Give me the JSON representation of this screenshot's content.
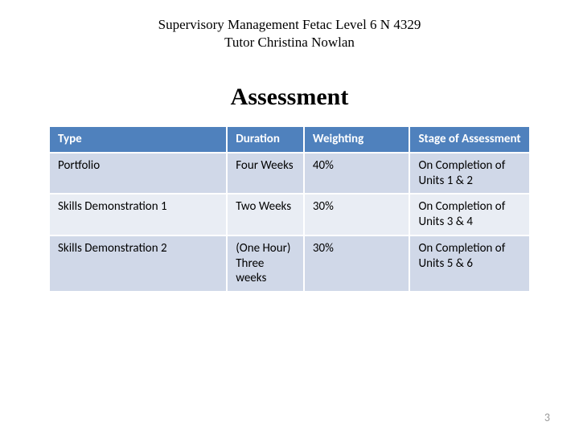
{
  "header": {
    "line1": "Supervisory Management Fetac Level 6 N 4329",
    "line2": "Tutor Christina Nowlan"
  },
  "title": "Assessment",
  "table": {
    "type": "table",
    "header_bg": "#4f81bd",
    "row_alt_bg_a": "#d0d8e8",
    "row_alt_bg_b": "#e9edf4",
    "header_text_color": "#ffffff",
    "font_family": "Calibri",
    "header_fontsize": 15,
    "cell_fontsize": 15,
    "columns": [
      {
        "key": "type",
        "label": "Type",
        "width_pct": 37
      },
      {
        "key": "duration",
        "label": "Duration",
        "width_pct": 16
      },
      {
        "key": "weighting",
        "label": "Weighting",
        "width_pct": 22
      },
      {
        "key": "stage",
        "label": "Stage of Assessment",
        "width_pct": 25
      }
    ],
    "rows": [
      {
        "type": "Portfolio",
        "duration": "Four Weeks",
        "weighting": "40%",
        "stage": "On Completion of Units 1 & 2"
      },
      {
        "type": "Skills Demonstration 1",
        "duration": "Two Weeks",
        "weighting": "30%",
        "stage": "On Completion of Units 3 & 4"
      },
      {
        "type": "Skills Demonstration 2",
        "duration": "(One Hour) Three weeks",
        "weighting": "30%",
        "stage": "On Completion of Units 5 & 6"
      }
    ]
  },
  "page_number": "3"
}
